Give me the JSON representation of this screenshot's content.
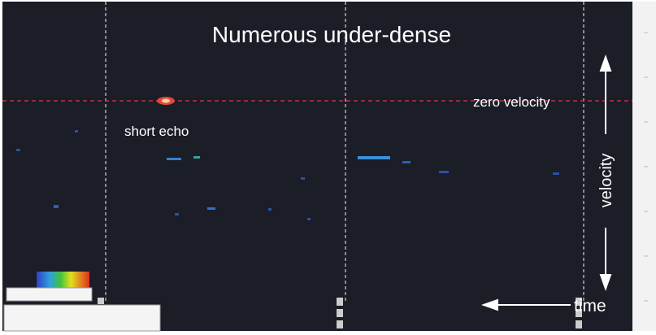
{
  "header": {
    "title": "Numerous under-dense"
  },
  "annotations": {
    "short_echo": "short echo",
    "zero_velocity": "zero velocity",
    "velocity": "velocity",
    "time": "time"
  }
}
